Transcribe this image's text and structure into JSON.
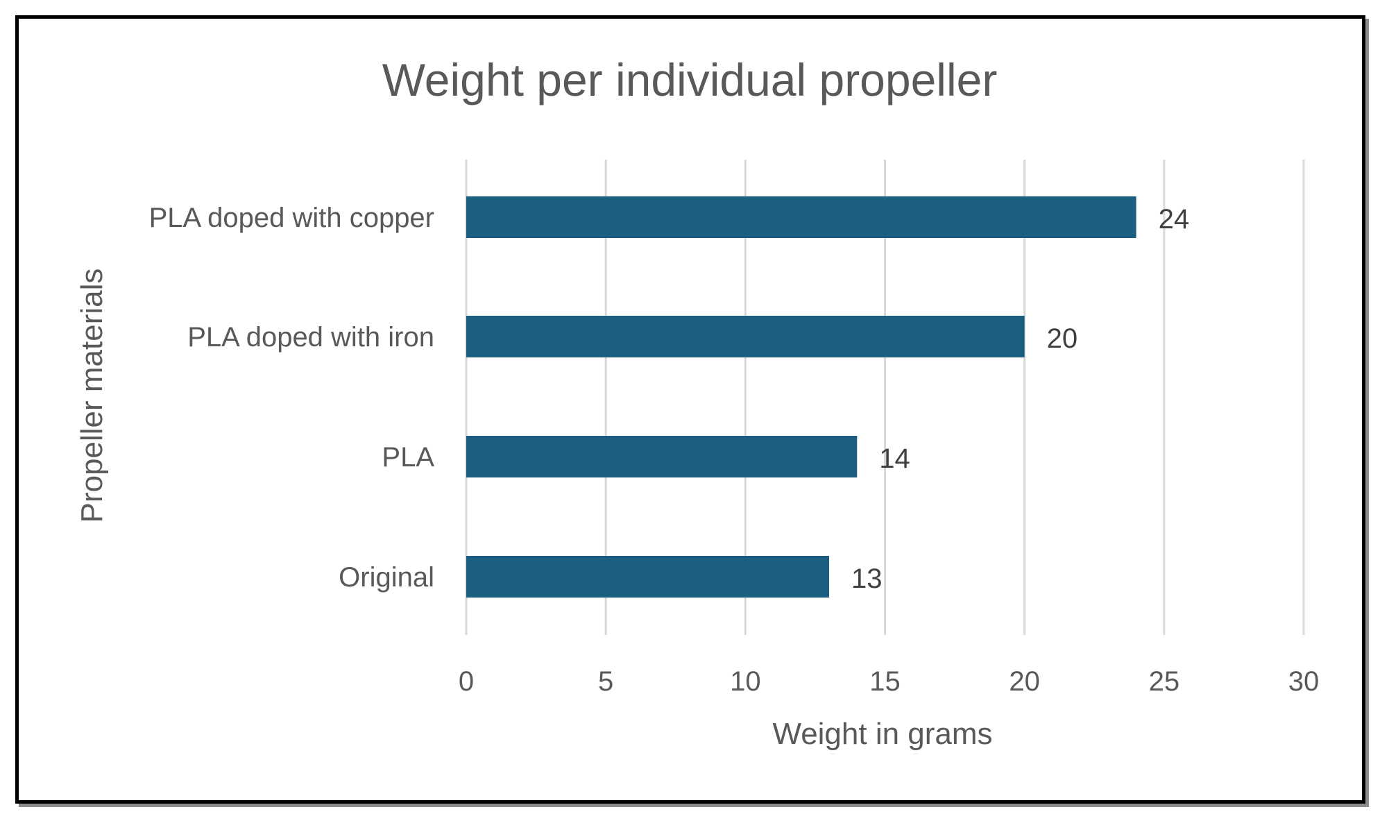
{
  "chart_data": {
    "type": "bar",
    "orientation": "horizontal",
    "title": "Weight per individual propeller",
    "xlabel": "Weight in grams",
    "ylabel": "Propeller materials",
    "categories": [
      "PLA doped with copper",
      "PLA doped with iron",
      "PLA",
      "Original"
    ],
    "values": [
      24,
      20,
      14,
      13
    ],
    "data_labels": [
      "24",
      "20",
      "14",
      "13"
    ],
    "xlim": [
      0,
      30
    ],
    "xticks": [
      0,
      5,
      10,
      15,
      20,
      25,
      30
    ],
    "xtick_labels": [
      "0",
      "5",
      "10",
      "15",
      "20",
      "25",
      "30"
    ],
    "grid": "vertical",
    "legend": "none",
    "bar_color": "#1b5e80",
    "grid_color": "#d9d9d9"
  }
}
